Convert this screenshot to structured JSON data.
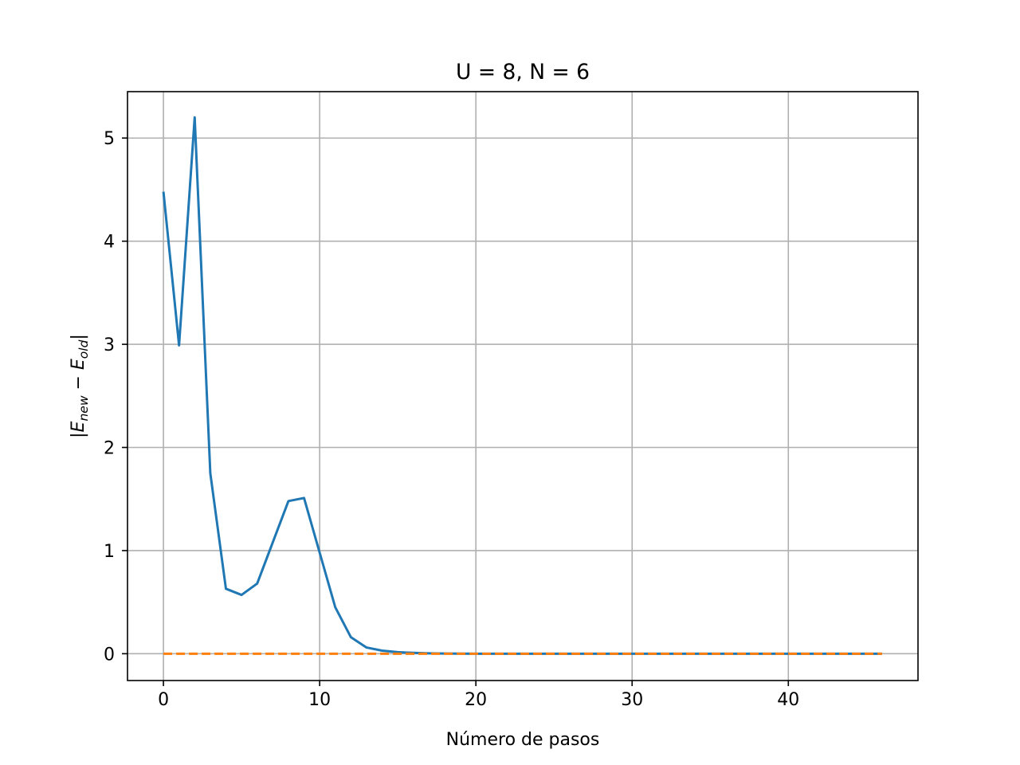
{
  "chart_data": {
    "type": "line",
    "title": "U = 8, N = 6",
    "xlabel": "Número de pasos",
    "ylabel": {
      "prefix": "|",
      "e1": "E",
      "s1": "new",
      "mid": " − ",
      "e2": "E",
      "s2": "old",
      "suffix": "|"
    },
    "xlim": [
      -2.3,
      48.3
    ],
    "ylim": [
      -0.26,
      5.45
    ],
    "xticks": [
      0,
      10,
      20,
      30,
      40
    ],
    "yticks": [
      0,
      1,
      2,
      3,
      4,
      5
    ],
    "grid": true,
    "series": [
      {
        "color": "#1f77b4",
        "linestyle": "solid",
        "x": [
          0,
          1,
          2,
          3,
          4,
          5,
          6,
          7,
          8,
          9,
          10,
          11,
          12,
          13,
          14,
          15,
          16,
          17,
          18,
          19,
          20,
          21,
          22,
          23,
          24,
          25,
          26,
          27,
          28,
          29,
          30,
          31,
          32,
          33,
          34,
          35,
          36,
          37,
          38,
          39,
          40,
          41,
          42,
          43,
          44,
          45,
          46
        ],
        "y": [
          4.48,
          2.99,
          5.2,
          1.75,
          0.63,
          0.57,
          0.68,
          1.08,
          1.48,
          1.51,
          0.98,
          0.45,
          0.16,
          0.06,
          0.03,
          0.015,
          0.008,
          0.004,
          0.002,
          0.001,
          0,
          0,
          0,
          0,
          0,
          0,
          0,
          0,
          0,
          0,
          0,
          0,
          0,
          0,
          0,
          0,
          0,
          0,
          0,
          0,
          0,
          0,
          0,
          0,
          0,
          0,
          0
        ]
      },
      {
        "color": "#ff7f0e",
        "linestyle": "dashed",
        "x": [
          0,
          46
        ],
        "y": [
          0,
          0
        ]
      }
    ]
  }
}
